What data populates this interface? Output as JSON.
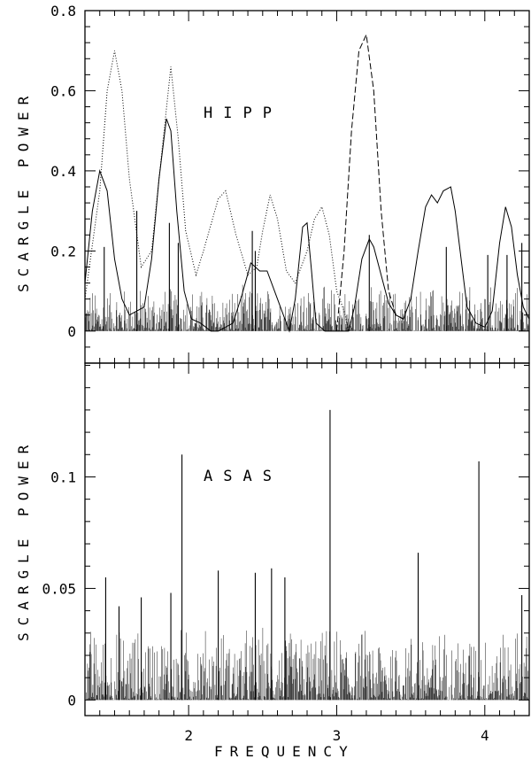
{
  "chart_data": [
    {
      "type": "line",
      "panel_label": "HIPP",
      "ylabel": "SCARGLE POWER",
      "xlim": [
        1.3,
        4.3
      ],
      "ylim": [
        -0.08,
        0.8
      ],
      "yticks": [
        0,
        0.2,
        0.4,
        0.6,
        0.8
      ],
      "ytick_labels": [
        "0",
        "0.2",
        "0.4",
        "0.6",
        "0.8"
      ],
      "grid": false,
      "series": [
        {
          "style": "dotted",
          "x": [
            1.3,
            1.4,
            1.45,
            1.5,
            1.55,
            1.6,
            1.68,
            1.75,
            1.82,
            1.88,
            1.93,
            1.98,
            2.05,
            2.1,
            2.2,
            2.25,
            2.32,
            2.4,
            2.46,
            2.5,
            2.55,
            2.6,
            2.66,
            2.72,
            2.8,
            2.85,
            2.9,
            2.95,
            3.0,
            3.05,
            3.08
          ],
          "y": [
            0.08,
            0.35,
            0.6,
            0.7,
            0.6,
            0.38,
            0.16,
            0.2,
            0.45,
            0.66,
            0.48,
            0.25,
            0.14,
            0.2,
            0.33,
            0.35,
            0.24,
            0.14,
            0.16,
            0.25,
            0.34,
            0.28,
            0.15,
            0.12,
            0.2,
            0.28,
            0.31,
            0.24,
            0.1,
            0.05,
            0.0
          ]
        },
        {
          "style": "dashed",
          "x": [
            3.0,
            3.05,
            3.1,
            3.15,
            3.2,
            3.25,
            3.3,
            3.35,
            3.4,
            3.45
          ],
          "y": [
            0.0,
            0.2,
            0.5,
            0.7,
            0.74,
            0.6,
            0.3,
            0.1,
            0.04,
            0.03
          ]
        },
        {
          "style": "solid",
          "x": [
            1.3,
            1.35,
            1.4,
            1.45,
            1.5,
            1.55,
            1.6,
            1.7,
            1.75,
            1.8,
            1.85,
            1.88,
            1.92,
            1.97,
            2.02,
            2.08,
            2.15,
            2.2,
            2.3,
            2.36,
            2.42,
            2.48,
            2.53,
            2.58,
            2.63,
            2.68,
            2.72,
            2.77,
            2.8,
            2.83,
            2.86,
            2.92,
            3.0,
            3.08,
            3.12,
            3.17,
            3.22,
            3.25,
            3.3,
            3.35,
            3.4,
            3.45,
            3.5,
            3.55,
            3.6,
            3.64,
            3.68,
            3.72,
            3.77,
            3.8,
            3.84,
            3.88,
            3.94,
            4.0,
            4.05,
            4.1,
            4.14,
            4.18,
            4.22,
            4.26,
            4.3
          ],
          "y": [
            0.12,
            0.3,
            0.4,
            0.35,
            0.18,
            0.08,
            0.04,
            0.06,
            0.18,
            0.38,
            0.53,
            0.5,
            0.3,
            0.1,
            0.03,
            0.02,
            0.0,
            0.0,
            0.02,
            0.09,
            0.17,
            0.15,
            0.15,
            0.1,
            0.05,
            0.0,
            0.08,
            0.26,
            0.27,
            0.15,
            0.02,
            0.0,
            0.0,
            0.0,
            0.06,
            0.18,
            0.23,
            0.21,
            0.14,
            0.07,
            0.04,
            0.03,
            0.08,
            0.2,
            0.31,
            0.34,
            0.32,
            0.35,
            0.36,
            0.3,
            0.18,
            0.06,
            0.02,
            0.01,
            0.05,
            0.22,
            0.31,
            0.26,
            0.14,
            0.06,
            0.03
          ]
        },
        {
          "style": "noise",
          "x_range": [
            1.3,
            4.3
          ],
          "typical_max": 0.12,
          "spikes": [
            {
              "x": 1.43,
              "y": 0.21
            },
            {
              "x": 1.65,
              "y": 0.3
            },
            {
              "x": 1.87,
              "y": 0.27
            },
            {
              "x": 1.93,
              "y": 0.22
            },
            {
              "x": 2.43,
              "y": 0.25
            },
            {
              "x": 2.45,
              "y": 0.2
            },
            {
              "x": 3.22,
              "y": 0.24
            },
            {
              "x": 3.74,
              "y": 0.21
            },
            {
              "x": 4.02,
              "y": 0.19
            },
            {
              "x": 4.15,
              "y": 0.19
            },
            {
              "x": 4.25,
              "y": 0.22
            }
          ]
        }
      ]
    },
    {
      "type": "line",
      "panel_label": "ASAS",
      "xlabel": "FREQUENCY",
      "ylabel": "SCARGLE POWER",
      "xlim": [
        1.3,
        4.3
      ],
      "ylim": [
        -0.007,
        0.151
      ],
      "xticks": [
        2,
        3,
        4
      ],
      "xtick_labels": [
        "2",
        "3",
        "4"
      ],
      "yticks": [
        0,
        0.05,
        0.1
      ],
      "ytick_labels": [
        "0",
        "0.05",
        "0.1"
      ],
      "grid": false,
      "series": [
        {
          "style": "noise",
          "x_range": [
            1.3,
            4.3
          ],
          "typical_max": 0.035,
          "spikes": [
            {
              "x": 1.44,
              "y": 0.055
            },
            {
              "x": 1.53,
              "y": 0.042
            },
            {
              "x": 1.68,
              "y": 0.046
            },
            {
              "x": 1.88,
              "y": 0.048
            },
            {
              "x": 1.955,
              "y": 0.11
            },
            {
              "x": 2.2,
              "y": 0.058
            },
            {
              "x": 2.45,
              "y": 0.057
            },
            {
              "x": 2.56,
              "y": 0.059
            },
            {
              "x": 2.65,
              "y": 0.055
            },
            {
              "x": 2.955,
              "y": 0.13
            },
            {
              "x": 3.55,
              "y": 0.066
            },
            {
              "x": 3.96,
              "y": 0.107
            },
            {
              "x": 4.25,
              "y": 0.047
            }
          ]
        }
      ]
    }
  ]
}
